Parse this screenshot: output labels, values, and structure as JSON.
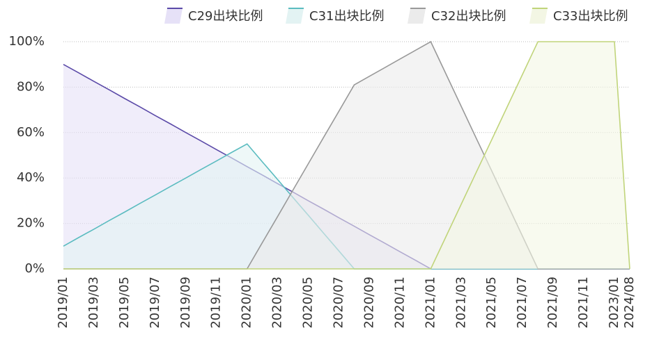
{
  "chart_data": {
    "type": "area",
    "categories": [
      "2019/01",
      null,
      "2019/03",
      null,
      "2019/05",
      null,
      "2019/07",
      null,
      "2019/09",
      null,
      "2019/11",
      null,
      "2020/01",
      null,
      "2020/03",
      null,
      "2020/05",
      null,
      "2020/07",
      null,
      "2020/09",
      null,
      "2020/11",
      null,
      "2021/01",
      null,
      "2021/03",
      null,
      "2021/05",
      null,
      "2021/07",
      null,
      "2021/09",
      null,
      "2021/11",
      null,
      "2023/01",
      "2024/08"
    ],
    "series": [
      {
        "name": "C29出块比例",
        "color": "#5b4aa8",
        "fill": "#e6e1f7",
        "values": [
          90,
          86.3,
          82.5,
          78.8,
          75,
          71.3,
          67.5,
          63.8,
          60,
          56.3,
          52.5,
          48.8,
          45,
          41.3,
          37.5,
          33.8,
          30,
          26.3,
          22.5,
          18.8,
          15,
          11.3,
          7.5,
          3.8,
          0,
          0,
          0,
          0,
          0,
          0,
          0,
          0,
          0,
          0,
          0,
          0,
          0,
          0
        ]
      },
      {
        "name": "C31出块比例",
        "color": "#5bbcc0",
        "fill": "#e3f3f3",
        "values": [
          10,
          13.8,
          17.5,
          21.3,
          25,
          28.8,
          32.5,
          36.3,
          40,
          43.8,
          47.5,
          51.3,
          55,
          47.1,
          39.3,
          31.4,
          23.6,
          15.7,
          7.9,
          0,
          0,
          0,
          0,
          0,
          0,
          0,
          0,
          0,
          0,
          0,
          0,
          0,
          0,
          0,
          0,
          0,
          0,
          0
        ]
      },
      {
        "name": "C32出块比例",
        "color": "#999999",
        "fill": "#ebebeb",
        "values": [
          0,
          0,
          0,
          0,
          0,
          0,
          0,
          0,
          0,
          0,
          0,
          0,
          0,
          11.6,
          23.1,
          34.7,
          46.3,
          57.9,
          69.4,
          81,
          84.8,
          88.6,
          92.4,
          96.2,
          100,
          85.7,
          71.4,
          57.1,
          42.9,
          28.6,
          14.3,
          0,
          0,
          0,
          0,
          0,
          0,
          0
        ]
      },
      {
        "name": "C33出块比例",
        "color": "#c0d47a",
        "fill": "#f3f6e4",
        "values": [
          0,
          0,
          0,
          0,
          0,
          0,
          0,
          0,
          0,
          0,
          0,
          0,
          0,
          0,
          0,
          0,
          0,
          0,
          0,
          0,
          0,
          0,
          0,
          0,
          0,
          14.3,
          28.6,
          42.9,
          57.1,
          71.4,
          85.7,
          100,
          100,
          100,
          100,
          100,
          100,
          0
        ]
      }
    ],
    "ylim": [
      0,
      100
    ],
    "yticks": [
      {
        "value": 0,
        "label": "0%"
      },
      {
        "value": 20,
        "label": "20%"
      },
      {
        "value": 40,
        "label": "40%"
      },
      {
        "value": 60,
        "label": "60%"
      },
      {
        "value": 80,
        "label": "80%"
      },
      {
        "value": 100,
        "label": "100%"
      }
    ],
    "grid": true,
    "legend": "top"
  }
}
